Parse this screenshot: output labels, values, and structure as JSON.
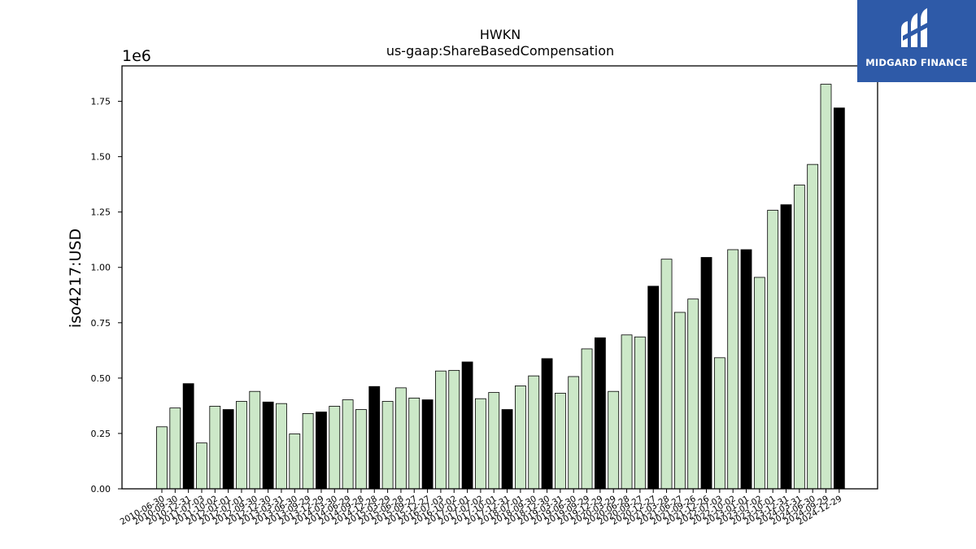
{
  "chart_data": {
    "type": "bar",
    "title": "HWKN",
    "subtitle": "us-gaap:ShareBasedCompensation",
    "ylabel": "iso4217:USD",
    "xlabel": "",
    "y_scale_label": "1e6",
    "ylim": [
      0,
      1910000
    ],
    "yticks": [
      0,
      250000,
      500000,
      750000,
      1000000,
      1250000,
      1500000,
      1750000
    ],
    "ytick_labels": [
      "0.00",
      "0.25",
      "0.50",
      "0.75",
      "1.00",
      "1.25",
      "1.50",
      "1.75"
    ],
    "grid": false,
    "legend": false,
    "colors": {
      "quarter": "#cce8c8",
      "annual": "#000000",
      "edge": "#000000"
    },
    "categories": [
      "2010-06-30",
      "2010-09-30",
      "2010-12-31",
      "2011-07-03",
      "2011-10-02",
      "2012-01-01",
      "2012-07-01",
      "2012-09-30",
      "2012-12-30",
      "2013-03-31",
      "2013-06-30",
      "2013-09-29",
      "2013-12-29",
      "2014-03-30",
      "2014-06-29",
      "2014-09-28",
      "2014-12-28",
      "2015-03-29",
      "2015-06-28",
      "2015-09-27",
      "2015-12-27",
      "2016-07-03",
      "2016-10-02",
      "2017-01-01",
      "2017-07-02",
      "2017-10-01",
      "2017-12-31",
      "2018-07-01",
      "2018-09-30",
      "2018-12-30",
      "2019-03-31",
      "2019-06-30",
      "2019-09-29",
      "2019-12-29",
      "2020-03-29",
      "2020-06-28",
      "2020-09-27",
      "2020-12-27",
      "2021-03-28",
      "2021-06-27",
      "2021-09-26",
      "2021-12-26",
      "2022-07-03",
      "2022-10-02",
      "2023-01-01",
      "2023-07-02",
      "2023-10-01",
      "2023-12-31",
      "2024-03-31",
      "2024-06-30",
      "2024-09-29",
      "2024-12-29"
    ],
    "values": [
      280000,
      365000,
      475000,
      207000,
      373000,
      358000,
      395000,
      440000,
      392000,
      385000,
      248000,
      340000,
      347000,
      373000,
      402000,
      358000,
      462000,
      395000,
      456000,
      410000,
      402000,
      532000,
      535000,
      573000,
      407000,
      435000,
      358000,
      465000,
      510000,
      588000,
      432000,
      507000,
      632000,
      682000,
      440000,
      695000,
      686000,
      915000,
      1037000,
      797000,
      857000,
      1045000,
      592000,
      1080000,
      1080000,
      955000,
      1258000,
      1283000,
      1372000,
      1465000,
      1827000,
      1720000
    ],
    "annual_flags": [
      0,
      0,
      1,
      0,
      0,
      1,
      0,
      0,
      1,
      0,
      0,
      0,
      1,
      0,
      0,
      0,
      1,
      0,
      0,
      0,
      1,
      0,
      0,
      1,
      0,
      0,
      1,
      0,
      0,
      1,
      0,
      0,
      0,
      1,
      0,
      0,
      0,
      1,
      0,
      0,
      0,
      1,
      0,
      0,
      1,
      0,
      0,
      1,
      0,
      0,
      0,
      1
    ]
  },
  "logo": {
    "text": "MIDGARD FINANCE"
  }
}
